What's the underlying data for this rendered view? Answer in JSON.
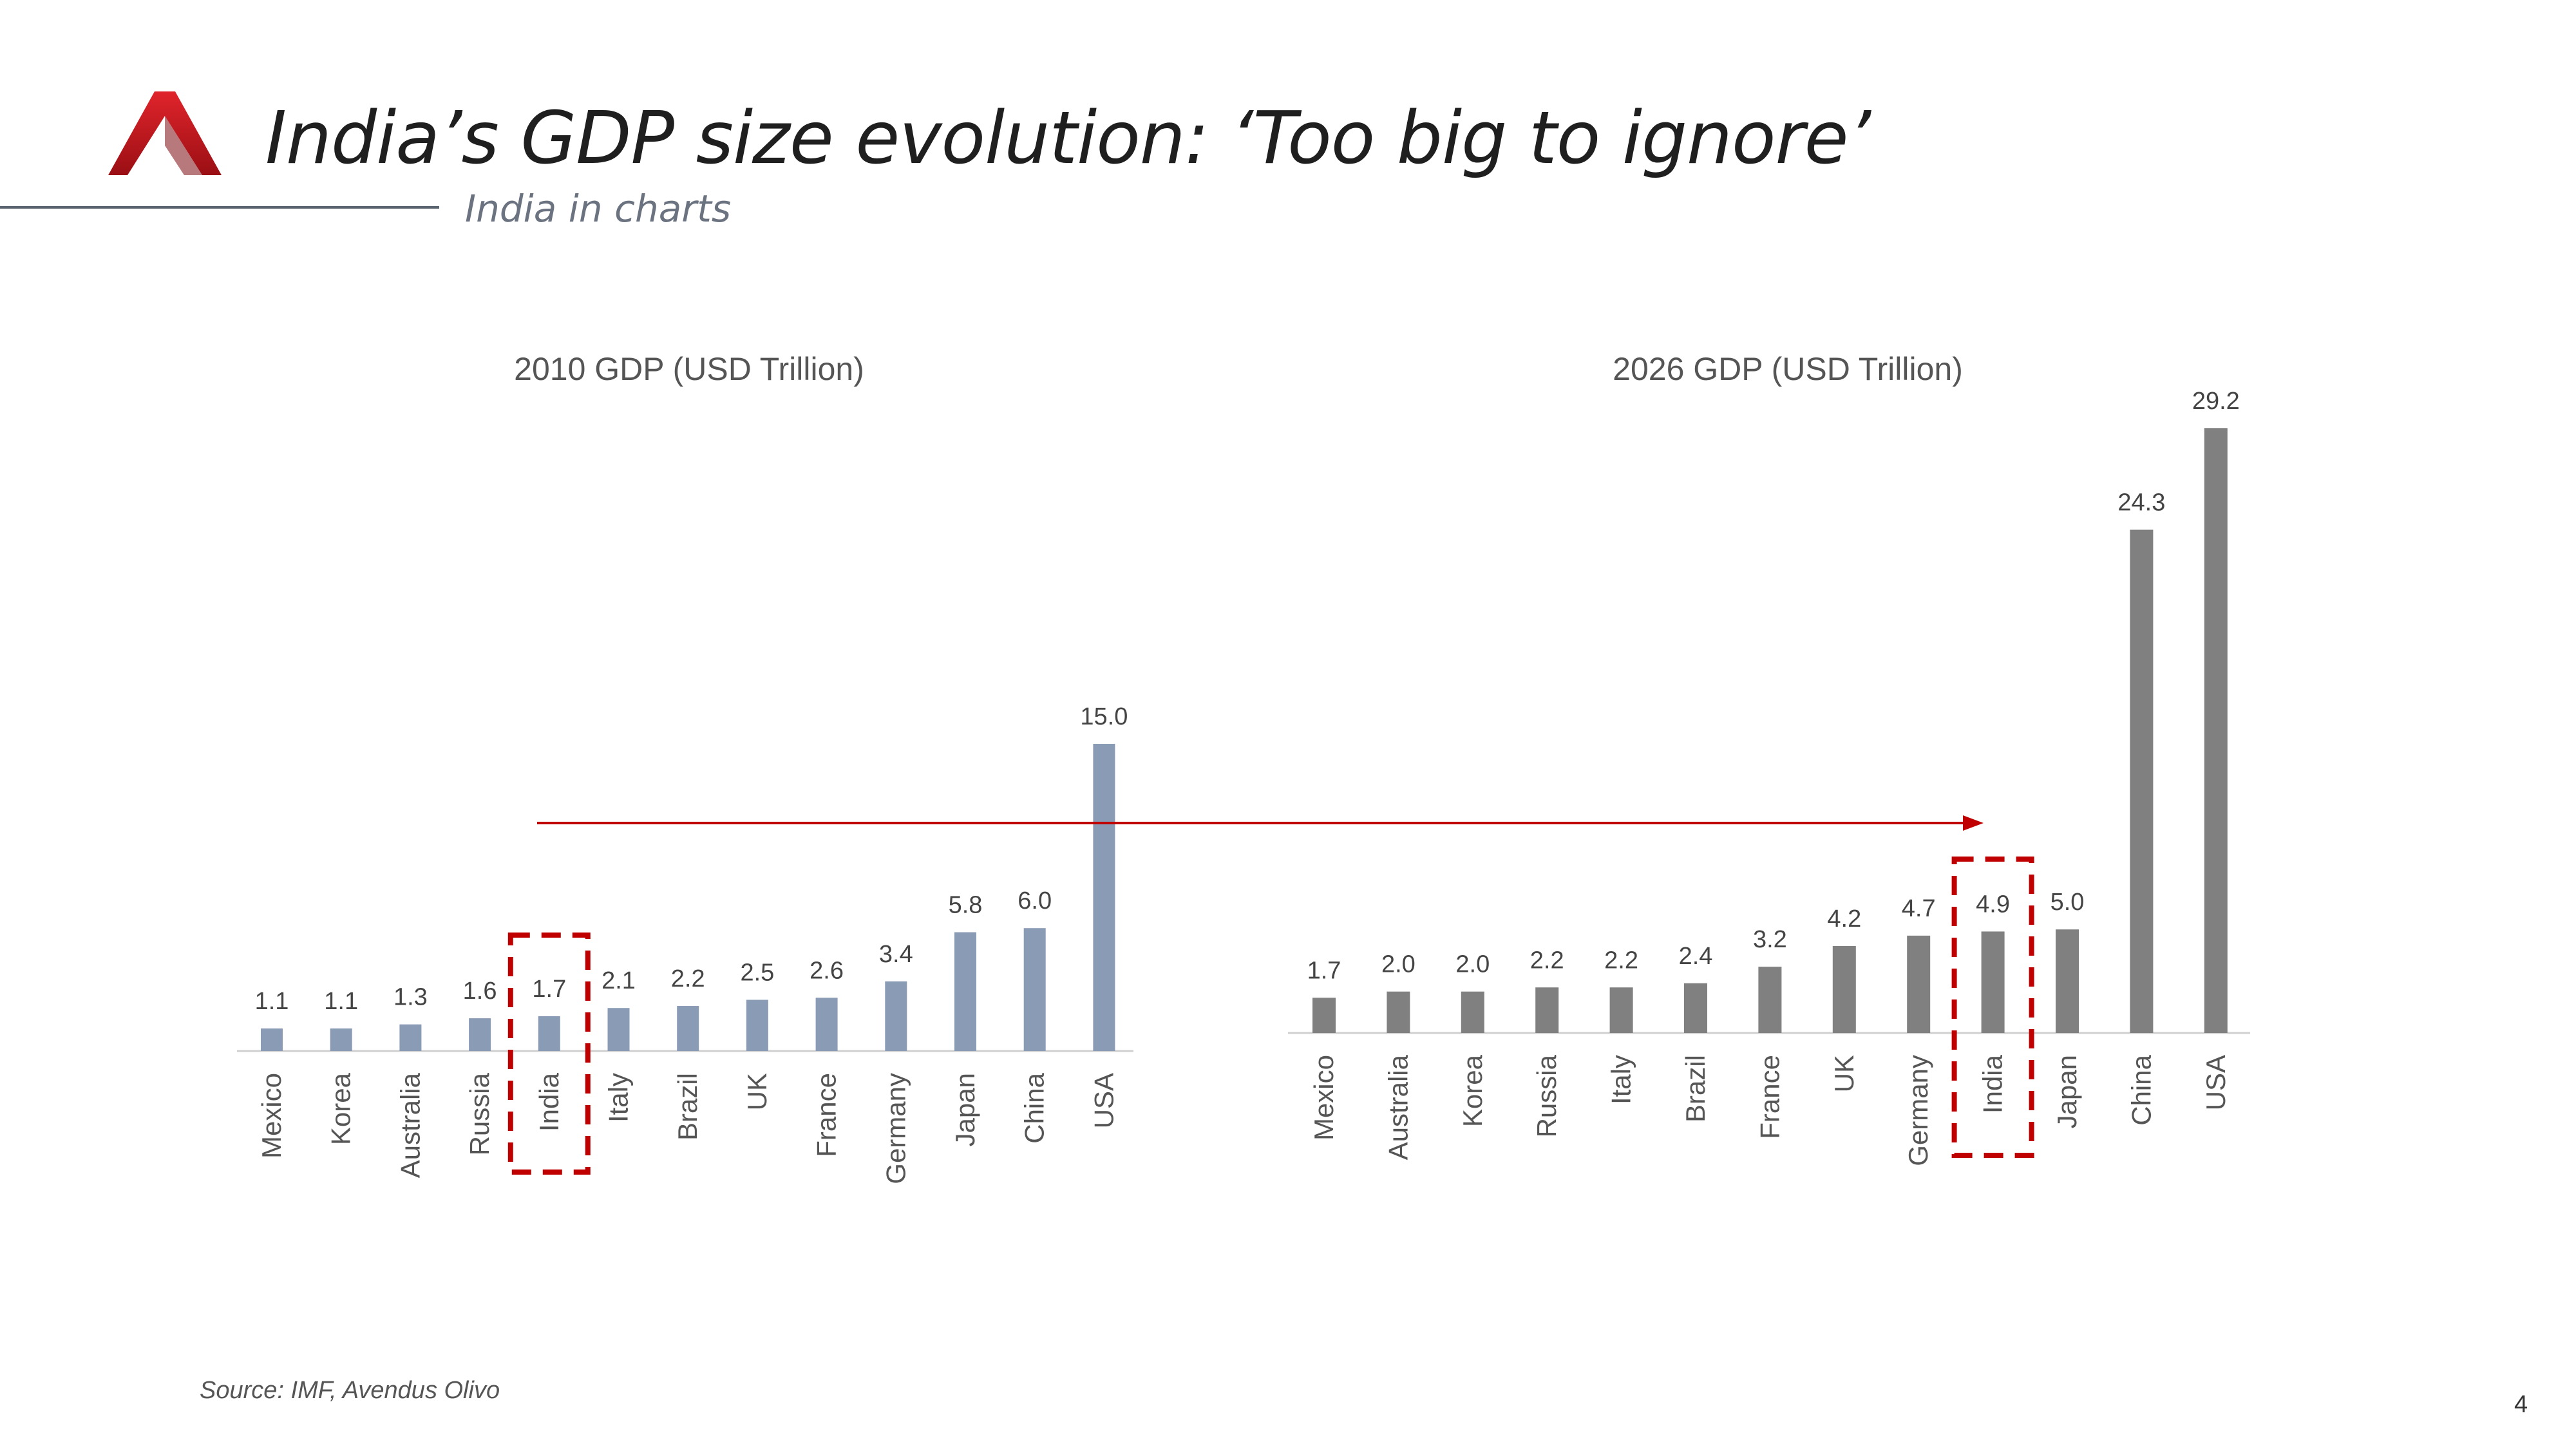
{
  "header": {
    "title": "India’s GDP size evolution: ‘Too big to ignore’",
    "subtitle": "India in charts"
  },
  "footer": {
    "source": "Source: IMF, Avendus Olivo",
    "page_number": "4"
  },
  "colors": {
    "logo_red": "#c8161d",
    "bar_2010": "#8a9bb5",
    "bar_2026": "#808080",
    "highlight": "#c00000",
    "arrow": "#c00000"
  },
  "chart_data": [
    {
      "type": "bar",
      "title": "2010 GDP (USD Trillion)",
      "categories": [
        "Mexico",
        "Korea",
        "Australia",
        "Russia",
        "India",
        "Italy",
        "Brazil",
        "UK",
        "France",
        "Germany",
        "Japan",
        "China",
        "USA"
      ],
      "values": [
        1.1,
        1.1,
        1.3,
        1.6,
        1.7,
        2.1,
        2.2,
        2.5,
        2.6,
        3.4,
        5.8,
        6.0,
        15.0
      ],
      "value_labels": [
        "1.1",
        "1.1",
        "1.3",
        "1.6",
        "1.7",
        "2.1",
        "2.2",
        "2.5",
        "2.6",
        "3.4",
        "5.8",
        "6.0",
        "15.0"
      ],
      "highlight_category": "India",
      "ylim": [
        0,
        15.0
      ],
      "grid": false
    },
    {
      "type": "bar",
      "title": "2026 GDP (USD Trillion)",
      "categories": [
        "Mexico",
        "Australia",
        "Korea",
        "Russia",
        "Italy",
        "Brazil",
        "France",
        "UK",
        "Germany",
        "India",
        "Japan",
        "China",
        "USA"
      ],
      "values": [
        1.7,
        2.0,
        2.0,
        2.2,
        2.2,
        2.4,
        3.2,
        4.2,
        4.7,
        4.9,
        5.0,
        24.3,
        29.2
      ],
      "value_labels": [
        "1.7",
        "2.0",
        "2.0",
        "2.2",
        "2.2",
        "2.4",
        "3.2",
        "4.2",
        "4.7",
        "4.9",
        "5.0",
        "24.3",
        "29.2"
      ],
      "highlight_category": "India",
      "ylim": [
        0,
        29.2
      ],
      "grid": false
    }
  ]
}
